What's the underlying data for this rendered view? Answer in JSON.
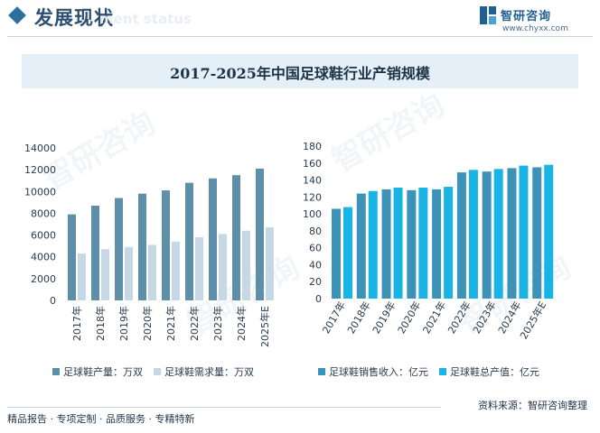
{
  "header": {
    "title": "发展现状",
    "ghost_text": "ment status",
    "brand_name": "智研咨询",
    "brand_url": "www.chyxx.com"
  },
  "watermark_text": "智研咨询",
  "chart_title": "2017-2025年中国足球鞋行业产销规模",
  "chart_data": [
    {
      "type": "bar",
      "categories": [
        "2017年",
        "2018年",
        "2019年",
        "2020年",
        "2021年",
        "2022年",
        "2023年",
        "2024年",
        "2025年E"
      ],
      "series": [
        {
          "name": "足球鞋产量：万双",
          "color": "#5e8fa8",
          "values": [
            7900,
            8700,
            9400,
            9800,
            10100,
            10800,
            11200,
            11500,
            12100
          ]
        },
        {
          "name": "足球鞋需求量：万双",
          "color": "#c5d8e3",
          "values": [
            4300,
            4700,
            4900,
            5100,
            5400,
            5800,
            6100,
            6400,
            6700
          ]
        }
      ],
      "yticks": [
        0,
        2000,
        4000,
        6000,
        8000,
        10000,
        12000,
        14000
      ],
      "ylim": [
        0,
        14000
      ],
      "xlabel": "",
      "ylabel": ""
    },
    {
      "type": "bar",
      "categories": [
        "2017年",
        "2018年",
        "2019年",
        "2020年",
        "2021年",
        "2022年",
        "2023年",
        "2024年",
        "2025年E"
      ],
      "series": [
        {
          "name": "足球鞋销售收入：亿元",
          "color": "#3c93b7",
          "values": [
            106,
            124,
            129,
            128,
            129,
            149,
            150,
            154,
            155
          ]
        },
        {
          "name": "足球鞋总产值：亿元",
          "color": "#19b3e6",
          "values": [
            108,
            127,
            131,
            131,
            132,
            152,
            153,
            157,
            158
          ]
        }
      ],
      "yticks": [
        0,
        20,
        40,
        60,
        80,
        100,
        120,
        140,
        160,
        180
      ],
      "ylim": [
        0,
        180
      ],
      "xlabel": "",
      "ylabel": ""
    }
  ],
  "source": "资料来源：智研咨询整理",
  "footer": "精品报告 · 专项定制 · 品质服务 · 专精特新"
}
